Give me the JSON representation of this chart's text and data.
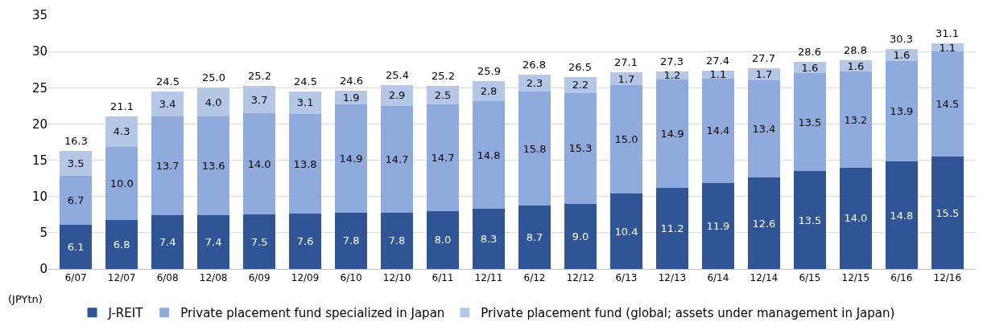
{
  "chart_data": {
    "type": "bar",
    "stacked": true,
    "ylabel": "(JPYtn)",
    "categories": [
      "6/07",
      "12/07",
      "6/08",
      "12/08",
      "6/09",
      "12/09",
      "6/10",
      "12/10",
      "6/11",
      "12/11",
      "6/12",
      "12/12",
      "6/13",
      "12/13",
      "6/14",
      "12/14",
      "6/15",
      "12/15",
      "6/16",
      "12/16"
    ],
    "series": [
      {
        "name": "J-REIT",
        "color": "#2f5597",
        "values": [
          6.1,
          6.8,
          7.4,
          7.4,
          7.5,
          7.6,
          7.8,
          7.8,
          8.0,
          8.3,
          8.7,
          9.0,
          10.4,
          11.2,
          11.9,
          12.6,
          13.5,
          14.0,
          14.8,
          15.5
        ],
        "value_labels": [
          "6.1",
          "6.8",
          "7.4",
          "7.4",
          "7.5",
          "7.6",
          "7.8",
          "7.8",
          "8.0",
          "8.3",
          "8.7",
          "9.0",
          "10.4",
          "11.2",
          "11.9",
          "12.6",
          "13.5",
          "14.0",
          "14.8",
          "15.5"
        ]
      },
      {
        "name": "Private placement fund specialized in Japan",
        "color": "#8faadc",
        "values": [
          6.7,
          10.0,
          13.7,
          13.6,
          14.0,
          13.8,
          14.9,
          14.7,
          14.7,
          14.8,
          15.8,
          15.3,
          15.0,
          14.9,
          14.4,
          13.4,
          13.5,
          13.2,
          13.9,
          14.5
        ],
        "value_labels": [
          "6.7",
          "10.0",
          "13.7",
          "13.6",
          "14.0",
          "13.8",
          "14.9",
          "14.7",
          "14.7",
          "14.8",
          "15.8",
          "15.3",
          "15.0",
          "14.9",
          "14.4",
          "13.4",
          "13.5",
          "13.2",
          "13.9",
          "14.5"
        ]
      },
      {
        "name": "Private placement fund (global; assets under management in Japan)",
        "color": "#b4c7e7",
        "values": [
          3.5,
          4.3,
          3.4,
          4.0,
          3.7,
          3.1,
          1.9,
          2.9,
          2.5,
          2.8,
          2.3,
          2.2,
          1.7,
          1.2,
          1.1,
          1.7,
          1.6,
          1.6,
          1.6,
          1.1
        ],
        "value_labels": [
          "3.5",
          "4.3",
          "3.4",
          "4.0",
          "3.7",
          "3.1",
          "1.9",
          "2.9",
          "2.5",
          "2.8",
          "2.3",
          "2.2",
          "1.7",
          "1.2",
          "1.1",
          "1.7",
          "1.6",
          "1.6",
          "1.6",
          "1.1"
        ]
      }
    ],
    "totals": [
      "16.3",
      "21.1",
      "24.5",
      "25.0",
      "25.2",
      "24.5",
      "24.6",
      "25.4",
      "25.2",
      "25.9",
      "26.8",
      "26.5",
      "27.1",
      "27.3",
      "27.4",
      "27.7",
      "28.6",
      "28.8",
      "30.3",
      "31.1"
    ],
    "ylim": [
      0,
      35
    ],
    "yticks": [
      0,
      5,
      10,
      15,
      20,
      25,
      30,
      35
    ],
    "grid": "y",
    "legend": "bottom left"
  }
}
